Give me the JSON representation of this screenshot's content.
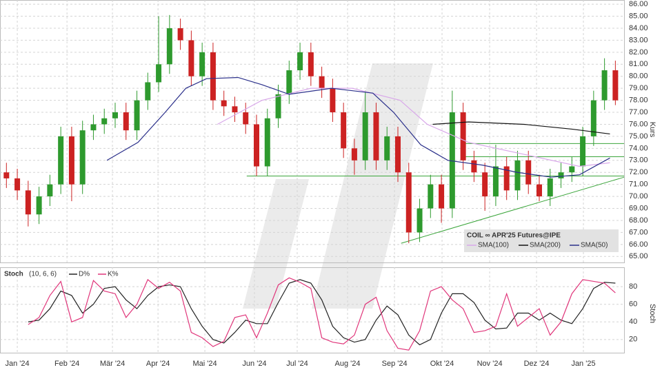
{
  "chart_data": [
    {
      "type": "candlestick",
      "title": "COIL ∞ APR'25 Futures@IPE",
      "ylabel": "Kurs",
      "x": [
        -1,
        0,
        1,
        2,
        3,
        4,
        5,
        6,
        7,
        8,
        9,
        10,
        11,
        12,
        13,
        14,
        15,
        16,
        17,
        18,
        19,
        20,
        21,
        22,
        23,
        24,
        25,
        26,
        27,
        28,
        29,
        30,
        31,
        32,
        33,
        34,
        35,
        36,
        37,
        38,
        39,
        40,
        41,
        42,
        43,
        44,
        45,
        46,
        47,
        48,
        49,
        50,
        51,
        52,
        53,
        54,
        55
      ],
      "open": [
        72,
        71.5,
        70.5,
        68.5,
        70,
        71,
        75,
        71,
        75.5,
        76,
        76.5,
        77,
        75.5,
        78,
        79.5,
        81,
        84,
        83,
        80,
        82,
        78,
        77.5,
        77,
        76,
        72.5,
        76.5,
        78.5,
        80.5,
        82,
        80,
        79,
        77,
        74,
        73,
        77,
        73,
        75,
        72,
        67,
        69,
        71,
        69,
        77,
        73,
        72,
        70,
        72.5,
        70.5,
        73,
        71,
        70,
        71.5,
        72,
        72.5,
        75,
        78,
        80.5
      ],
      "high": [
        72.8,
        72.3,
        71.3,
        70.8,
        71.8,
        75.8,
        75.8,
        76.3,
        76.8,
        77.3,
        77.8,
        77.8,
        78.8,
        80.3,
        85,
        85.1,
        84.8,
        83.8,
        82.8,
        82.8,
        78.8,
        78.3,
        77.8,
        76.8,
        77.3,
        79.3,
        81.3,
        82.8,
        82.8,
        80.8,
        79.8,
        77.8,
        74.8,
        78.8,
        77.8,
        75.8,
        75.8,
        72.8,
        69.8,
        71.8,
        71.8,
        78.8,
        77.8,
        73.8,
        72.8,
        74.3,
        73.3,
        73.8,
        73.8,
        71.8,
        72.3,
        72.8,
        73.3,
        75.8,
        78.8,
        81.5,
        81.3
      ],
      "low": [
        70.7,
        69.7,
        67.5,
        67.7,
        69.2,
        70.2,
        69.6,
        70.2,
        74.7,
        75.2,
        75.7,
        74.7,
        74.7,
        77.2,
        78.7,
        80.2,
        82.2,
        79.2,
        79.2,
        77.2,
        76.7,
        76.2,
        75.2,
        71.7,
        71.7,
        75.7,
        77.7,
        79.7,
        79.2,
        78.2,
        76.2,
        73.2,
        71.8,
        72.2,
        72.2,
        72.2,
        71.2,
        66.1,
        66.2,
        68.2,
        67.8,
        68.2,
        72.2,
        71.2,
        68.8,
        69.2,
        69.7,
        69.7,
        70.2,
        69.6,
        69.2,
        70.7,
        71.2,
        71.7,
        74.2,
        77.2,
        77.6
      ],
      "close": [
        71.5,
        70.5,
        68.5,
        70,
        71,
        75,
        71,
        75.5,
        76,
        76.5,
        77,
        75.5,
        78,
        79.5,
        81,
        84,
        83,
        80,
        82,
        78,
        77.5,
        77,
        76,
        72.5,
        76.5,
        78.5,
        80.5,
        82,
        80,
        79,
        77,
        74,
        73,
        77,
        73,
        75,
        72,
        67,
        69,
        71,
        69,
        77,
        73,
        72,
        70,
        72.5,
        70.5,
        73,
        71,
        70,
        71.5,
        72,
        72.5,
        75,
        78,
        80.5,
        78
      ],
      "up_color": "#2e9a2e",
      "down_color": "#cc2222",
      "series": [
        {
          "name": "SMA(100)",
          "color": "#d9a8ea",
          "x": [
            18.4,
            22.5,
            27,
            30.8,
            35.2,
            37.7,
            41.5,
            46.6,
            51.7,
            54.5
          ],
          "values": [
            76,
            78,
            79,
            79,
            78,
            76,
            74.5,
            73.5,
            72.5,
            72.8
          ]
        },
        {
          "name": "SMA(200)",
          "color": "#111111",
          "x": [
            38.2,
            41.5,
            46.6,
            51,
            54.5
          ],
          "values": [
            76,
            76.2,
            76,
            75.6,
            75.2
          ]
        },
        {
          "name": "SMA(50)",
          "color": "#2a2f8a",
          "x": [
            8.24,
            11.1,
            13.6,
            15.5,
            17.4,
            20.3,
            22.5,
            25,
            28.9,
            32.7,
            34.6,
            37.1,
            39.6,
            42.8,
            46,
            49.1,
            51.7,
            54.5
          ],
          "values": [
            73,
            74.5,
            77,
            79,
            79.8,
            79.9,
            79.3,
            78.5,
            79,
            78.6,
            77,
            74.3,
            73,
            72.6,
            72,
            71.6,
            71.8,
            73.2
          ]
        }
      ],
      "trendlines": [
        {
          "color": "#3aa53a",
          "x": [
            21.1,
            55.8
          ],
          "values": [
            71.7,
            71.7
          ]
        },
        {
          "color": "#3aa53a",
          "x": [
            40.8,
            55.8
          ],
          "values": [
            74.4,
            74.4
          ]
        },
        {
          "color": "#3aa53a",
          "x": [
            40.8,
            55.8
          ],
          "values": [
            73.3,
            73.3
          ]
        },
        {
          "color": "#3aa53a",
          "x": [
            35.3,
            55.8
          ],
          "values": [
            66.1,
            71.6
          ]
        }
      ],
      "xlim": [
        -1.59,
        55.8
      ],
      "ylim": [
        64.5,
        86.35
      ],
      "yticks": [
        {
          "value": 65,
          "label": "65.00"
        },
        {
          "value": 66,
          "label": "66.00"
        },
        {
          "value": 67,
          "label": "67.00"
        },
        {
          "value": 68,
          "label": "68.00"
        },
        {
          "value": 69,
          "label": "69.00"
        },
        {
          "value": 70,
          "label": "70.00"
        },
        {
          "value": 71,
          "label": "71.00"
        },
        {
          "value": 72,
          "label": "72.00"
        },
        {
          "value": 73,
          "label": "73.00"
        },
        {
          "value": 74,
          "label": "74.00"
        },
        {
          "value": 75,
          "label": "75.00"
        },
        {
          "value": 76,
          "label": "76.00"
        },
        {
          "value": 77,
          "label": "77.00"
        },
        {
          "value": 78,
          "label": "78.00"
        },
        {
          "value": 79,
          "label": "79.00"
        },
        {
          "value": 80,
          "label": "80.00"
        },
        {
          "value": 81,
          "label": "81.00"
        },
        {
          "value": 82,
          "label": "82.00"
        },
        {
          "value": 83,
          "label": "83.00"
        },
        {
          "value": 84,
          "label": "84.00"
        },
        {
          "value": 85,
          "label": "85.00"
        },
        {
          "value": 86,
          "label": "86.00"
        }
      ],
      "grid": true
    },
    {
      "type": "line",
      "title": "Stoch",
      "subtitle": "(10, 6, 6)",
      "ylabel": "Stoch",
      "series": [
        {
          "name": "D%",
          "color": "#222222",
          "x": [
            1,
            2,
            3,
            4,
            5,
            6,
            7,
            8,
            9,
            10,
            11,
            12,
            13,
            14,
            15,
            16,
            17,
            18,
            19,
            20,
            21,
            22,
            23,
            24,
            25,
            26,
            27,
            28,
            29,
            30,
            31,
            32,
            33,
            34,
            35,
            36,
            37,
            38,
            39,
            40,
            41,
            42,
            43,
            44,
            45,
            46,
            47,
            48,
            49,
            50,
            51,
            52,
            53,
            54,
            55
          ],
          "values": [
            40,
            42,
            55,
            75,
            70,
            50,
            60,
            78,
            80,
            65,
            55,
            70,
            80,
            82,
            80,
            55,
            35,
            20,
            16,
            28,
            42,
            38,
            38,
            62,
            84,
            88,
            84,
            65,
            35,
            22,
            17,
            20,
            42,
            58,
            48,
            25,
            14,
            20,
            50,
            72,
            72,
            62,
            42,
            32,
            33,
            50,
            50,
            42,
            50,
            42,
            38,
            55,
            78,
            85,
            84
          ]
        },
        {
          "name": "K%",
          "color": "#e0357a",
          "x": [
            1,
            2,
            3,
            4,
            5,
            6,
            7,
            8,
            9,
            10,
            11,
            12,
            13,
            14,
            15,
            16,
            17,
            18,
            19,
            20,
            21,
            22,
            23,
            24,
            25,
            26,
            27,
            28,
            29,
            30,
            31,
            32,
            33,
            34,
            35,
            36,
            37,
            38,
            39,
            40,
            41,
            42,
            43,
            44,
            45,
            46,
            47,
            48,
            49,
            50,
            51,
            52,
            53,
            54,
            55
          ],
          "values": [
            37,
            45,
            70,
            86,
            40,
            45,
            87,
            75,
            72,
            45,
            60,
            88,
            78,
            85,
            75,
            28,
            22,
            12,
            18,
            45,
            48,
            22,
            50,
            82,
            90,
            85,
            78,
            22,
            17,
            15,
            25,
            60,
            68,
            30,
            10,
            8,
            30,
            75,
            80,
            65,
            55,
            28,
            30,
            35,
            72,
            35,
            45,
            55,
            25,
            40,
            72,
            88,
            86,
            84,
            73
          ]
        }
      ],
      "xlim": [
        -1.59,
        55.8
      ],
      "ylim": [
        5,
        102
      ],
      "yticks": [
        20,
        40,
        60,
        80
      ],
      "xticks": [
        {
          "value": 0,
          "label": "Jan '24"
        },
        {
          "value": 4.57,
          "label": "Feb '24"
        },
        {
          "value": 8.75,
          "label": "Mär '24"
        },
        {
          "value": 12.94,
          "label": "Apr '24"
        },
        {
          "value": 17.25,
          "label": "Mai '24"
        },
        {
          "value": 21.81,
          "label": "Jun '24"
        },
        {
          "value": 25.74,
          "label": "Jul '24"
        },
        {
          "value": 30.37,
          "label": "Aug '24"
        },
        {
          "value": 34.69,
          "label": "Sep '24"
        },
        {
          "value": 39.06,
          "label": "Okt '24"
        },
        {
          "value": 43.44,
          "label": "Nov '24"
        },
        {
          "value": 47.75,
          "label": "Dez '24"
        },
        {
          "value": 52.06,
          "label": "Jan '25"
        }
      ],
      "grid": true
    }
  ]
}
